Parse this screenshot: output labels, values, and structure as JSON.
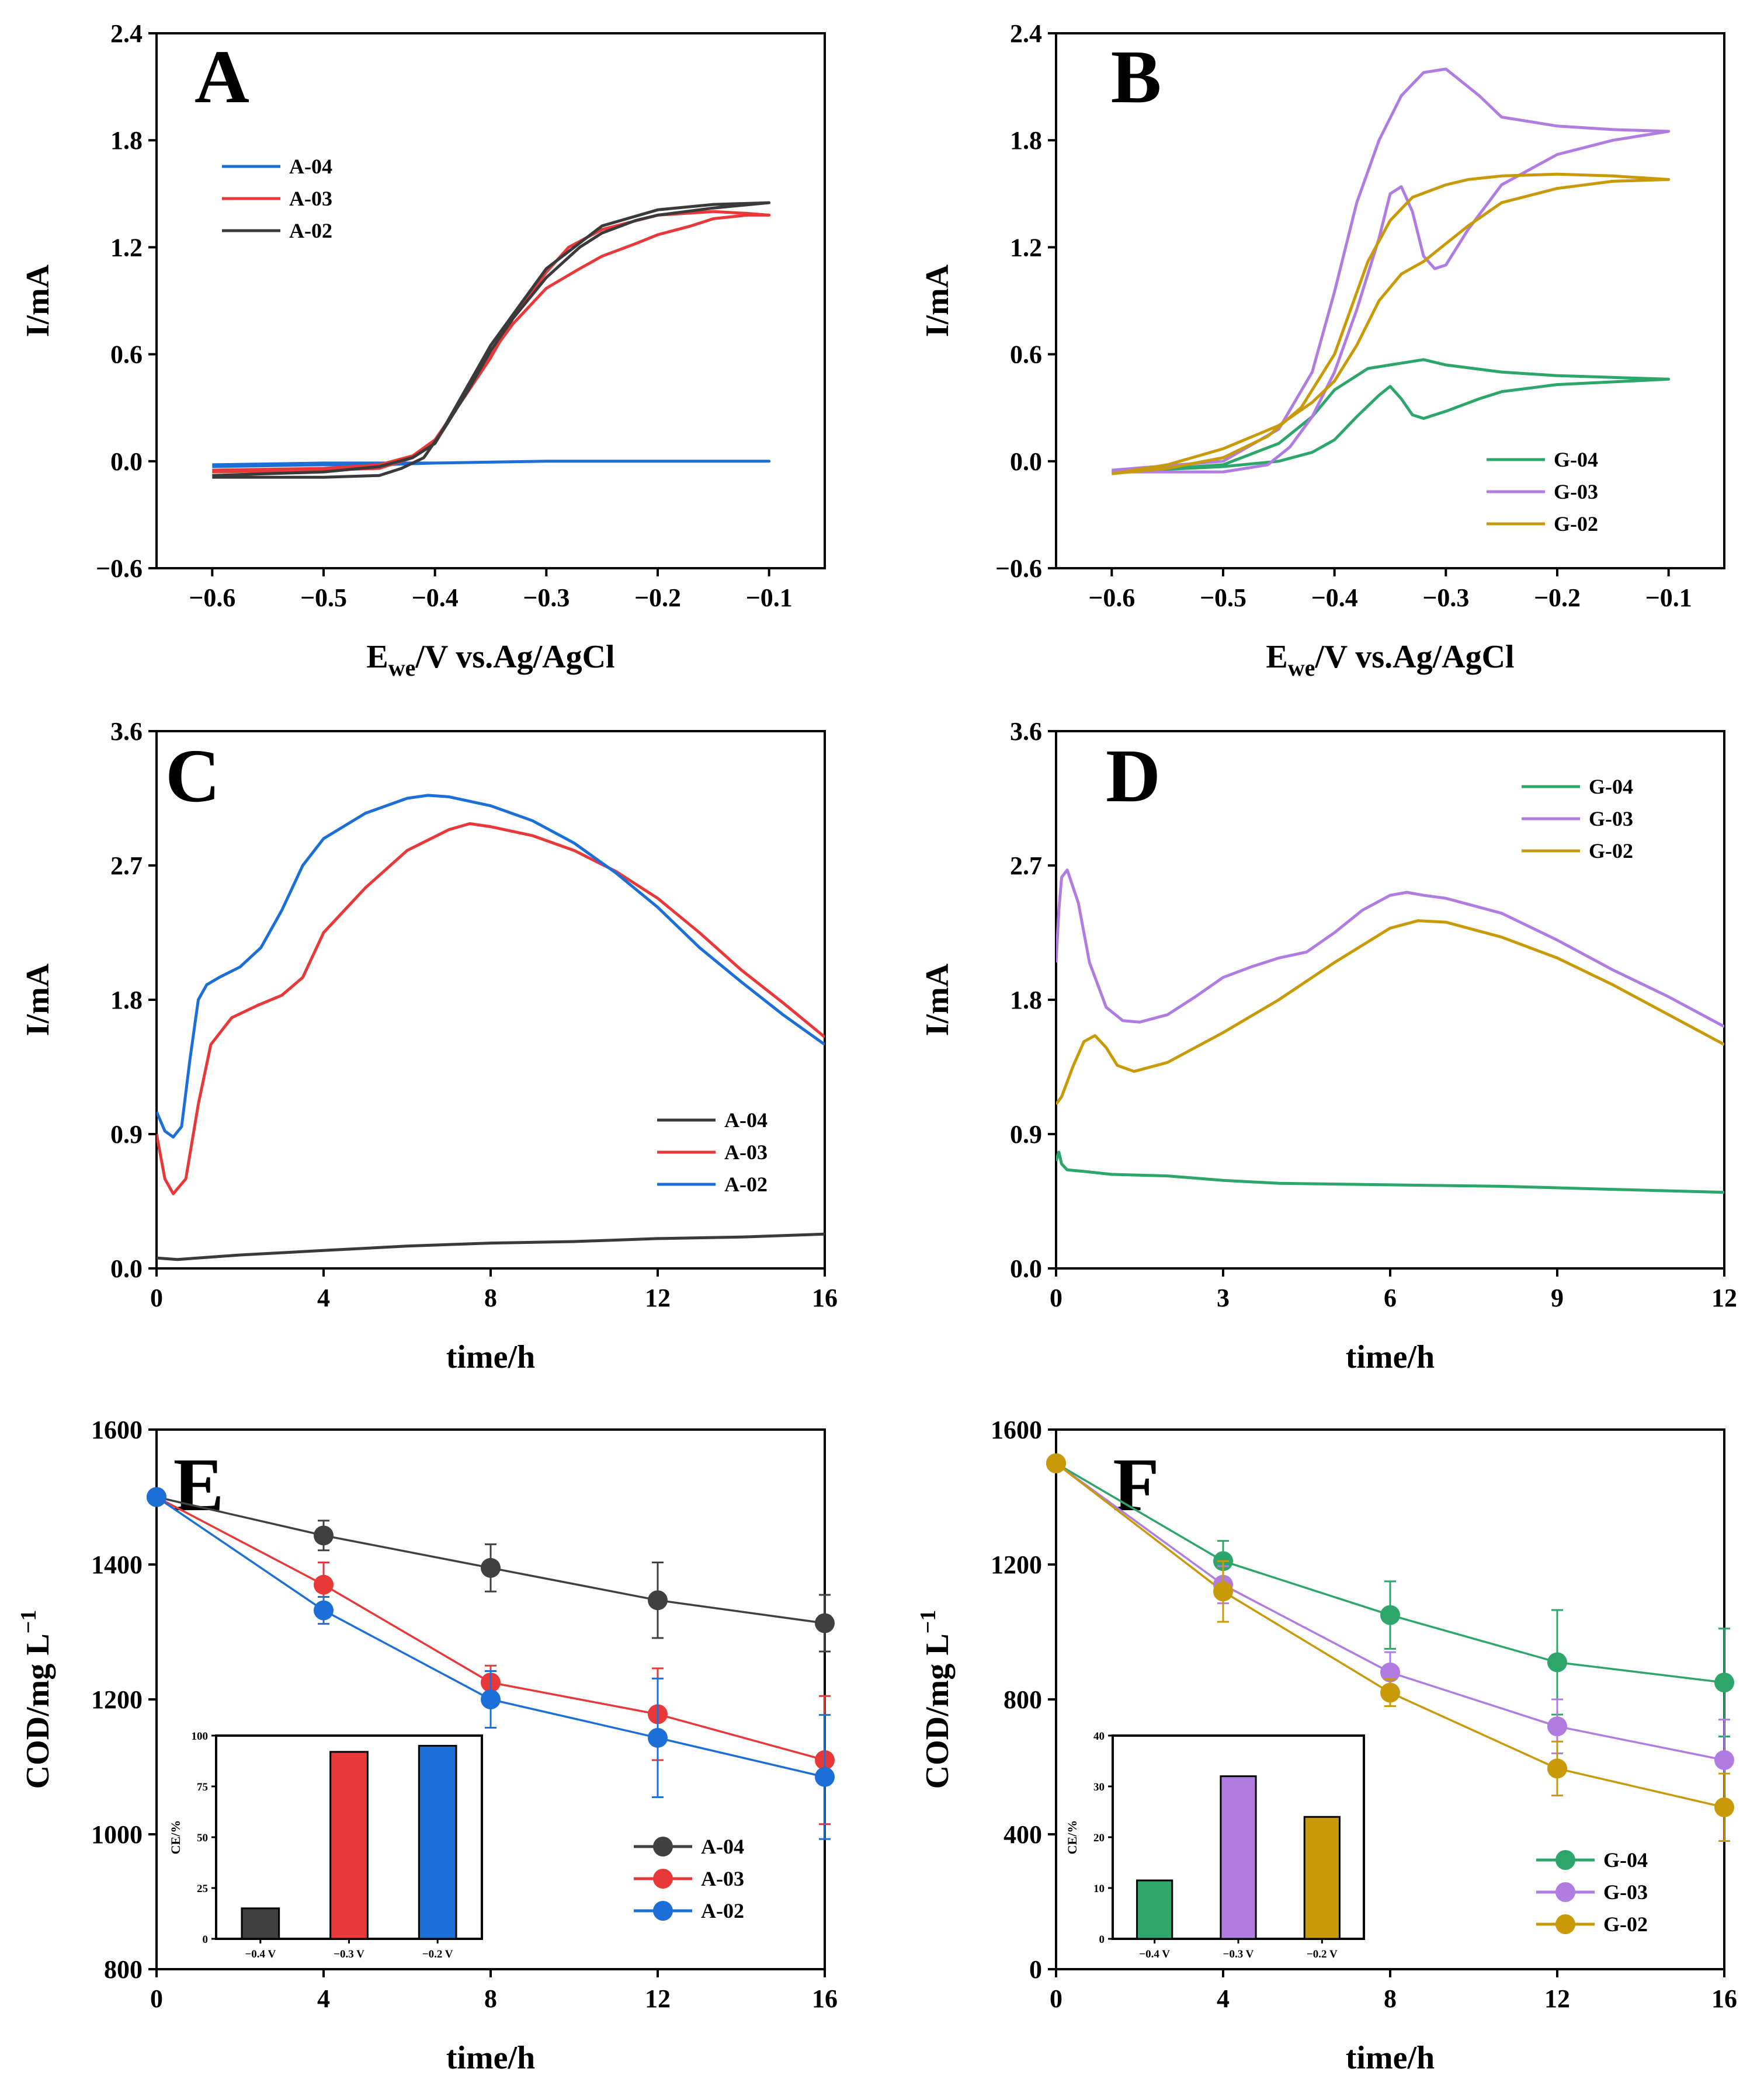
{
  "colors": {
    "black": "#404040",
    "red": "#e8383a",
    "blue": "#1c6fd6",
    "green": "#2ca66a",
    "purple": "#b07ce2",
    "gold": "#c89a07"
  },
  "chart_data": [
    {
      "id": "A",
      "panel_label": "A",
      "type": "line",
      "xlabel": "E",
      "xlabel_sub": "we",
      "xlabel_rest": "/V vs.Ag/AgCl",
      "ylabel": "I/mA",
      "xlim": [
        -0.65,
        -0.05
      ],
      "ylim": [
        -0.6,
        2.4
      ],
      "xticks": [
        -0.6,
        -0.5,
        -0.4,
        -0.3,
        -0.2,
        -0.1
      ],
      "xtick_labels": [
        "−0.6",
        "−0.5",
        "−0.4",
        "−0.3",
        "−0.2",
        "−0.1"
      ],
      "yticks": [
        -0.6,
        0.0,
        0.6,
        1.2,
        1.8,
        2.4
      ],
      "ytick_labels": [
        "−0.6",
        "0.0",
        "0.6",
        "1.2",
        "1.8",
        "2.4"
      ],
      "legend_position": "upper-left",
      "series": [
        {
          "name": "A-04",
          "color": "#1c6fd6",
          "x": [
            -0.6,
            -0.5,
            -0.45,
            -0.4,
            -0.3,
            -0.2,
            -0.1,
            -0.2,
            -0.3,
            -0.4,
            -0.5,
            -0.6
          ],
          "y": [
            -0.03,
            -0.02,
            -0.02,
            -0.01,
            0.0,
            0.0,
            0.0,
            0.0,
            0.0,
            -0.01,
            -0.01,
            -0.02
          ]
        },
        {
          "name": "A-03",
          "color": "#e8383a",
          "x": [
            -0.6,
            -0.5,
            -0.45,
            -0.42,
            -0.4,
            -0.38,
            -0.35,
            -0.33,
            -0.3,
            -0.27,
            -0.25,
            -0.22,
            -0.2,
            -0.17,
            -0.15,
            -0.12,
            -0.1,
            -0.12,
            -0.15,
            -0.2,
            -0.25,
            -0.28,
            -0.3,
            -0.33,
            -0.35,
            -0.38,
            -0.4,
            -0.42,
            -0.45,
            -0.5,
            -0.6
          ],
          "y": [
            -0.06,
            -0.05,
            -0.04,
            0.02,
            0.1,
            0.3,
            0.6,
            0.77,
            0.97,
            1.08,
            1.15,
            1.22,
            1.27,
            1.32,
            1.36,
            1.38,
            1.38,
            1.39,
            1.4,
            1.38,
            1.3,
            1.2,
            1.06,
            0.8,
            0.58,
            0.3,
            0.12,
            0.03,
            -0.02,
            -0.04,
            -0.05
          ]
        },
        {
          "name": "A-02",
          "color": "#3a3a3a",
          "x": [
            -0.6,
            -0.5,
            -0.45,
            -0.43,
            -0.41,
            -0.39,
            -0.37,
            -0.35,
            -0.33,
            -0.3,
            -0.27,
            -0.25,
            -0.22,
            -0.2,
            -0.15,
            -0.1,
            -0.15,
            -0.2,
            -0.25,
            -0.3,
            -0.35,
            -0.4,
            -0.42,
            -0.45,
            -0.5,
            -0.6
          ],
          "y": [
            -0.09,
            -0.09,
            -0.08,
            -0.04,
            0.02,
            0.2,
            0.4,
            0.62,
            0.8,
            1.03,
            1.2,
            1.28,
            1.35,
            1.38,
            1.42,
            1.45,
            1.44,
            1.41,
            1.32,
            1.08,
            0.65,
            0.1,
            0.02,
            -0.03,
            -0.06,
            -0.08
          ]
        }
      ]
    },
    {
      "id": "B",
      "panel_label": "B",
      "type": "line",
      "xlabel": "E",
      "xlabel_sub": "we",
      "xlabel_rest": "/V vs.Ag/AgCl",
      "ylabel": "I/mA",
      "xlim": [
        -0.65,
        -0.05
      ],
      "ylim": [
        -0.6,
        2.4
      ],
      "xticks": [
        -0.6,
        -0.5,
        -0.4,
        -0.3,
        -0.2,
        -0.1
      ],
      "xtick_labels": [
        "−0.6",
        "−0.5",
        "−0.4",
        "−0.3",
        "−0.2",
        "−0.1"
      ],
      "yticks": [
        -0.6,
        0.0,
        0.6,
        1.2,
        1.8,
        2.4
      ],
      "ytick_labels": [
        "−0.6",
        "0.0",
        "0.6",
        "1.2",
        "1.8",
        "2.4"
      ],
      "legend_position": "lower-right",
      "series": [
        {
          "name": "G-04",
          "color": "#2ca66a",
          "x": [
            -0.6,
            -0.5,
            -0.45,
            -0.42,
            -0.4,
            -0.38,
            -0.36,
            -0.35,
            -0.34,
            -0.33,
            -0.32,
            -0.3,
            -0.27,
            -0.25,
            -0.2,
            -0.1,
            -0.15,
            -0.2,
            -0.25,
            -0.3,
            -0.32,
            -0.35,
            -0.37,
            -0.4,
            -0.42,
            -0.45,
            -0.5,
            -0.6
          ],
          "y": [
            -0.06,
            -0.03,
            0.0,
            0.05,
            0.12,
            0.25,
            0.37,
            0.42,
            0.35,
            0.26,
            0.24,
            0.28,
            0.35,
            0.39,
            0.43,
            0.46,
            0.47,
            0.48,
            0.5,
            0.54,
            0.57,
            0.54,
            0.52,
            0.4,
            0.25,
            0.1,
            -0.02,
            -0.06
          ]
        },
        {
          "name": "G-03",
          "color": "#b07ce2",
          "x": [
            -0.6,
            -0.5,
            -0.46,
            -0.44,
            -0.42,
            -0.4,
            -0.38,
            -0.36,
            -0.35,
            -0.34,
            -0.33,
            -0.32,
            -0.31,
            -0.3,
            -0.28,
            -0.25,
            -0.2,
            -0.15,
            -0.1,
            -0.15,
            -0.2,
            -0.25,
            -0.27,
            -0.29,
            -0.3,
            -0.32,
            -0.34,
            -0.36,
            -0.38,
            -0.4,
            -0.42,
            -0.45,
            -0.5,
            -0.6
          ],
          "y": [
            -0.06,
            -0.06,
            -0.02,
            0.08,
            0.25,
            0.5,
            0.85,
            1.25,
            1.5,
            1.54,
            1.4,
            1.15,
            1.08,
            1.1,
            1.3,
            1.55,
            1.72,
            1.8,
            1.85,
            1.86,
            1.88,
            1.93,
            2.05,
            2.15,
            2.2,
            2.18,
            2.05,
            1.8,
            1.45,
            0.95,
            0.5,
            0.18,
            0.0,
            -0.05
          ]
        },
        {
          "name": "G-02",
          "color": "#c89a07",
          "x": [
            -0.6,
            -0.55,
            -0.5,
            -0.45,
            -0.42,
            -0.4,
            -0.38,
            -0.36,
            -0.34,
            -0.32,
            -0.3,
            -0.28,
            -0.25,
            -0.2,
            -0.15,
            -0.1,
            -0.15,
            -0.2,
            -0.25,
            -0.28,
            -0.3,
            -0.33,
            -0.35,
            -0.37,
            -0.4,
            -0.43,
            -0.46,
            -0.5,
            -0.55,
            -0.6
          ],
          "y": [
            -0.07,
            -0.02,
            0.07,
            0.2,
            0.33,
            0.45,
            0.65,
            0.9,
            1.05,
            1.12,
            1.22,
            1.32,
            1.45,
            1.53,
            1.57,
            1.58,
            1.6,
            1.61,
            1.6,
            1.58,
            1.55,
            1.48,
            1.35,
            1.12,
            0.6,
            0.3,
            0.14,
            0.02,
            -0.04,
            -0.07
          ]
        }
      ]
    },
    {
      "id": "C",
      "panel_label": "C",
      "type": "line",
      "xlabel": "time/h",
      "ylabel": "I/mA",
      "xlim": [
        0,
        16
      ],
      "ylim": [
        0,
        3.6
      ],
      "xticks": [
        0,
        4,
        8,
        12,
        16
      ],
      "xtick_labels": [
        "0",
        "4",
        "8",
        "12",
        "16"
      ],
      "yticks": [
        0.0,
        0.9,
        1.8,
        2.7,
        3.6
      ],
      "ytick_labels": [
        "0.0",
        "0.9",
        "1.8",
        "2.7",
        "3.6"
      ],
      "legend_position": "lower-right",
      "series": [
        {
          "name": "A-04",
          "color": "#3a3a3a",
          "x": [
            0,
            0.5,
            1,
            2,
            4,
            6,
            8,
            10,
            12,
            14,
            16
          ],
          "y": [
            0.07,
            0.06,
            0.07,
            0.09,
            0.12,
            0.15,
            0.17,
            0.18,
            0.2,
            0.21,
            0.23
          ]
        },
        {
          "name": "A-03",
          "color": "#e8383a",
          "x": [
            0,
            0.2,
            0.4,
            0.7,
            1,
            1.3,
            1.8,
            2.4,
            3,
            3.5,
            4,
            5,
            6,
            7,
            7.5,
            8,
            9,
            10,
            11,
            12,
            13,
            14,
            15,
            16
          ],
          "y": [
            0.9,
            0.6,
            0.5,
            0.6,
            1.1,
            1.5,
            1.68,
            1.76,
            1.83,
            1.95,
            2.25,
            2.55,
            2.8,
            2.94,
            2.98,
            2.96,
            2.9,
            2.8,
            2.66,
            2.48,
            2.25,
            2.0,
            1.78,
            1.55
          ]
        },
        {
          "name": "A-02",
          "color": "#1c6fd6",
          "x": [
            0,
            0.2,
            0.4,
            0.6,
            0.8,
            1,
            1.2,
            1.5,
            2,
            2.5,
            3,
            3.5,
            4,
            5,
            6,
            6.5,
            7,
            8,
            9,
            10,
            11,
            12,
            13,
            14,
            15,
            16
          ],
          "y": [
            1.05,
            0.92,
            0.88,
            0.95,
            1.4,
            1.8,
            1.9,
            1.95,
            2.02,
            2.15,
            2.4,
            2.7,
            2.88,
            3.05,
            3.15,
            3.17,
            3.16,
            3.1,
            3.0,
            2.85,
            2.65,
            2.42,
            2.15,
            1.92,
            1.7,
            1.5
          ]
        }
      ]
    },
    {
      "id": "D",
      "panel_label": "D",
      "type": "line",
      "xlabel": "time/h",
      "ylabel": "I/mA",
      "xlim": [
        0,
        12
      ],
      "ylim": [
        0,
        3.6
      ],
      "xticks": [
        0,
        3,
        6,
        9,
        12
      ],
      "xtick_labels": [
        "0",
        "3",
        "6",
        "9",
        "12"
      ],
      "yticks": [
        0.0,
        0.9,
        1.8,
        2.7,
        3.6
      ],
      "ytick_labels": [
        "0.0",
        "0.9",
        "1.8",
        "2.7",
        "3.6"
      ],
      "legend_position": "upper-left",
      "series": [
        {
          "name": "G-04",
          "color": "#2ca66a",
          "x": [
            0,
            0.05,
            0.1,
            0.2,
            0.5,
            1,
            2,
            3,
            4,
            6,
            8,
            10,
            12
          ],
          "y": [
            0.72,
            0.78,
            0.7,
            0.66,
            0.65,
            0.63,
            0.62,
            0.59,
            0.57,
            0.56,
            0.55,
            0.53,
            0.51
          ]
        },
        {
          "name": "G-03",
          "color": "#b07ce2",
          "x": [
            0,
            0.05,
            0.1,
            0.2,
            0.4,
            0.6,
            0.9,
            1.2,
            1.5,
            2,
            2.5,
            3,
            3.5,
            4,
            4.5,
            5,
            5.5,
            6,
            6.3,
            6.6,
            7,
            8,
            9,
            10,
            11,
            12
          ],
          "y": [
            2.05,
            2.4,
            2.62,
            2.67,
            2.45,
            2.05,
            1.75,
            1.66,
            1.65,
            1.7,
            1.82,
            1.95,
            2.02,
            2.08,
            2.12,
            2.25,
            2.4,
            2.5,
            2.52,
            2.5,
            2.48,
            2.38,
            2.2,
            2.0,
            1.82,
            1.62
          ]
        },
        {
          "name": "G-02",
          "color": "#c89a07",
          "x": [
            0,
            0.1,
            0.3,
            0.5,
            0.7,
            0.9,
            1.1,
            1.4,
            2,
            3,
            4,
            5,
            6,
            6.5,
            7,
            8,
            9,
            10,
            11,
            12
          ],
          "y": [
            1.1,
            1.15,
            1.35,
            1.52,
            1.56,
            1.48,
            1.36,
            1.32,
            1.38,
            1.58,
            1.8,
            2.05,
            2.28,
            2.33,
            2.32,
            2.22,
            2.08,
            1.9,
            1.7,
            1.5
          ]
        }
      ]
    },
    {
      "id": "E",
      "panel_label": "E",
      "type": "line",
      "xlabel": "time/h",
      "ylabel": "COD/mg L",
      "ylabel_sup": "−1",
      "xlim": [
        0,
        16
      ],
      "ylim": [
        800,
        1600
      ],
      "xticks": [
        0,
        4,
        8,
        12,
        16
      ],
      "xtick_labels": [
        "0",
        "4",
        "8",
        "12",
        "16"
      ],
      "yticks": [
        800,
        1000,
        1200,
        1400,
        1600
      ],
      "ytick_labels": [
        "800",
        "1000",
        "1200",
        "1400",
        "1600"
      ],
      "legend_position": "lower-right",
      "series": [
        {
          "name": "A-04",
          "color": "#404040",
          "x": [
            0,
            4,
            8,
            12,
            16
          ],
          "y": [
            1500,
            1443,
            1395,
            1347,
            1313
          ],
          "err": [
            0,
            22,
            35,
            56,
            42
          ]
        },
        {
          "name": "A-03",
          "color": "#e8383a",
          "x": [
            0,
            4,
            8,
            12,
            16
          ],
          "y": [
            1500,
            1370,
            1225,
            1178,
            1110
          ],
          "err": [
            0,
            33,
            25,
            68,
            95
          ]
        },
        {
          "name": "A-02",
          "color": "#1c6fd6",
          "x": [
            0,
            4,
            8,
            12,
            16
          ],
          "y": [
            1500,
            1332,
            1200,
            1143,
            1085
          ],
          "err": [
            0,
            20,
            42,
            88,
            92
          ]
        }
      ],
      "inset": {
        "type": "bar",
        "ylabel": "CE/%",
        "categories": [
          "−0.4 V",
          "−0.3 V",
          "−0.2 V"
        ],
        "values": [
          15,
          92,
          95
        ],
        "ylim": [
          0,
          100
        ],
        "yticks": [
          0,
          25,
          50,
          75,
          100
        ],
        "ytick_labels": [
          "0",
          "25",
          "50",
          "75",
          "100"
        ],
        "colors": [
          "#404040",
          "#e8383a",
          "#1c6fd6"
        ]
      }
    },
    {
      "id": "F",
      "panel_label": "F",
      "type": "line",
      "xlabel": "time/h",
      "ylabel": "COD/mg L",
      "ylabel_sup": "−1",
      "xlim": [
        0,
        16
      ],
      "ylim": [
        0,
        1600
      ],
      "xticks": [
        0,
        4,
        8,
        12,
        16
      ],
      "xtick_labels": [
        "0",
        "4",
        "8",
        "12",
        "16"
      ],
      "yticks": [
        0,
        400,
        800,
        1200,
        1600
      ],
      "ytick_labels": [
        "0",
        "400",
        "800",
        "1200",
        "1600"
      ],
      "legend_position": "lower-right",
      "series": [
        {
          "name": "G-04",
          "color": "#2ca66a",
          "x": [
            0,
            4,
            8,
            12,
            16
          ],
          "y": [
            1500,
            1210,
            1050,
            910,
            850
          ],
          "err": [
            0,
            60,
            100,
            155,
            160
          ]
        },
        {
          "name": "G-03",
          "color": "#b07ce2",
          "x": [
            0,
            4,
            8,
            12,
            16
          ],
          "y": [
            1500,
            1140,
            880,
            720,
            620
          ],
          "err": [
            0,
            55,
            60,
            80,
            120
          ]
        },
        {
          "name": "G-02",
          "color": "#c89a07",
          "x": [
            0,
            4,
            8,
            12,
            16
          ],
          "y": [
            1500,
            1120,
            820,
            595,
            480
          ],
          "err": [
            0,
            90,
            40,
            80,
            100
          ]
        }
      ],
      "inset": {
        "type": "bar",
        "ylabel": "CE/%",
        "categories": [
          "−0.4 V",
          "−0.3 V",
          "−0.2 V"
        ],
        "values": [
          11.5,
          32,
          24
        ],
        "ylim": [
          0,
          40
        ],
        "yticks": [
          0,
          10,
          20,
          30,
          40
        ],
        "ytick_labels": [
          "0",
          "10",
          "20",
          "30",
          "40"
        ],
        "colors": [
          "#2ca66a",
          "#b07ce2",
          "#c89a07"
        ]
      }
    }
  ]
}
